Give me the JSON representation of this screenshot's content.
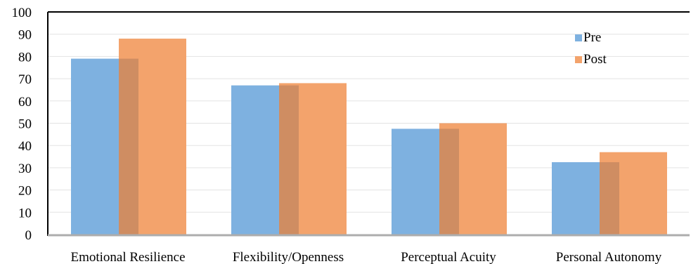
{
  "chart_data": {
    "type": "bar",
    "categories": [
      "Emotional Resilience",
      "Flexibility/Openness",
      "Perceptual Acuity",
      "Personal Autonomy"
    ],
    "series": [
      {
        "name": "Pre",
        "values": [
          79,
          67,
          47.5,
          32.5
        ],
        "color": "#7EB1E0"
      },
      {
        "name": "Post",
        "values": [
          88,
          68,
          50,
          37
        ],
        "color": "#F3A36C"
      }
    ],
    "overlap_color": "#CF8D62",
    "ylim": [
      0,
      100
    ],
    "yticks": [
      "0",
      "10",
      "20",
      "30",
      "40",
      "50",
      "60",
      "70",
      "80",
      "90",
      "100"
    ],
    "grid": true,
    "legend_position": "top-right",
    "title": "",
    "xlabel": "",
    "ylabel": ""
  }
}
